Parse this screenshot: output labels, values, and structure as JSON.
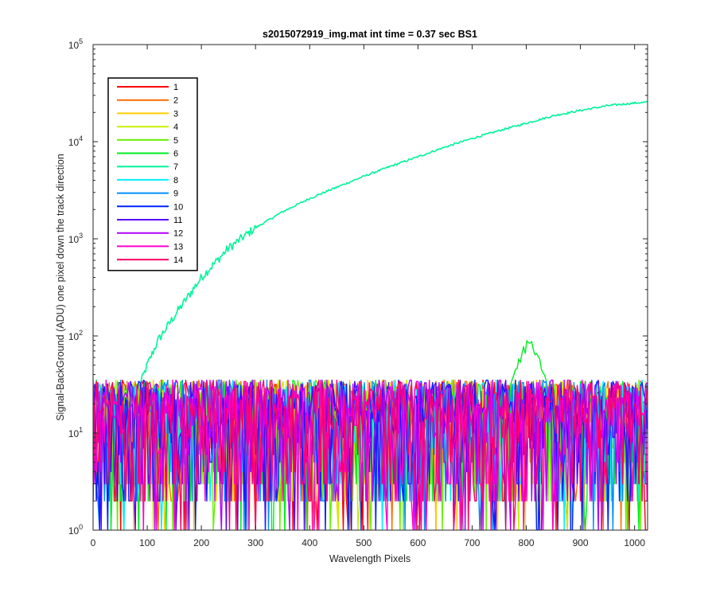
{
  "chart_data": {
    "type": "line",
    "title": "s2015072919_img.mat int time = 0.37 sec   BS1",
    "xlabel": "Wavelength Pixels",
    "ylabel": "Signal-BackGround (ADU) one pixel down the track direction",
    "xlim": [
      0,
      1024
    ],
    "ylim": [
      1,
      100000
    ],
    "yscale": "log",
    "grid": false,
    "legend_position": "top-left",
    "x_ticks": [
      0,
      100,
      200,
      300,
      400,
      500,
      600,
      700,
      800,
      900,
      1000
    ],
    "y_ticks": [
      {
        "value": 1,
        "base": "10",
        "exp": "0"
      },
      {
        "value": 10,
        "base": "10",
        "exp": "1"
      },
      {
        "value": 100,
        "base": "10",
        "exp": "2"
      },
      {
        "value": 1000,
        "base": "10",
        "exp": "3"
      },
      {
        "value": 10000,
        "base": "10",
        "exp": "4"
      },
      {
        "value": 100000,
        "base": "10",
        "exp": "5"
      }
    ],
    "series": [
      {
        "name": "1",
        "color": "#ff0000",
        "noise": true
      },
      {
        "name": "2",
        "color": "#ff6a00",
        "noise": true
      },
      {
        "name": "3",
        "color": "#ffcc00",
        "noise": true
      },
      {
        "name": "4",
        "color": "#c8f000",
        "noise": true
      },
      {
        "name": "5",
        "color": "#66ee00",
        "noise": true
      },
      {
        "name": "6",
        "color": "#00ee22",
        "noise": true,
        "peak": {
          "x": 805,
          "y": 100
        }
      },
      {
        "name": "7",
        "color": "#00f59a",
        "noise": false,
        "x": [
          85,
          100,
          120,
          150,
          200,
          250,
          300,
          350,
          400,
          450,
          500,
          550,
          600,
          650,
          700,
          750,
          800,
          850,
          900,
          950,
          1000,
          1024
        ],
        "y": [
          30,
          50,
          90,
          160,
          400,
          800,
          1300,
          1900,
          2600,
          3400,
          4400,
          5600,
          7000,
          8800,
          10800,
          13000,
          15500,
          18500,
          21000,
          23500,
          25000,
          25500
        ]
      },
      {
        "name": "8",
        "color": "#00f0ff",
        "noise": true
      },
      {
        "name": "9",
        "color": "#0090ff",
        "noise": true
      },
      {
        "name": "10",
        "color": "#0022ff",
        "noise": true
      },
      {
        "name": "11",
        "color": "#5500ff",
        "noise": true
      },
      {
        "name": "12",
        "color": "#b400ff",
        "noise": true
      },
      {
        "name": "13",
        "color": "#ff00cc",
        "noise": true
      },
      {
        "name": "14",
        "color": "#ff0066",
        "noise": true
      }
    ]
  }
}
